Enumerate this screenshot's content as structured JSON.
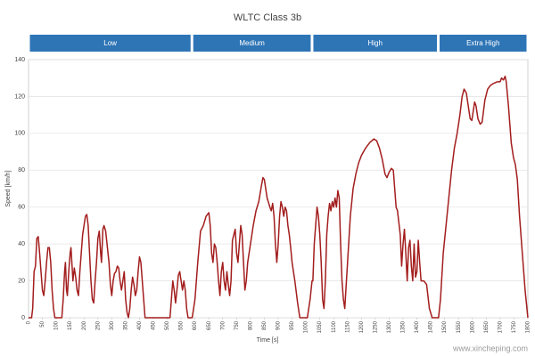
{
  "chart_data": {
    "type": "line",
    "title": "WLTC Class 3b",
    "xlabel": "Time [s]",
    "ylabel": "Speed [km/h]",
    "watermark": "www.xincheping.com",
    "phases": [
      {
        "label": "Low",
        "start": 0,
        "end": 589
      },
      {
        "label": "Medium",
        "start": 589,
        "end": 1022
      },
      {
        "label": "High",
        "start": 1022,
        "end": 1477
      },
      {
        "label": "Extra High",
        "start": 1477,
        "end": 1800
      }
    ],
    "xlim": [
      0,
      1800
    ],
    "xticks": [
      0,
      50,
      100,
      150,
      200,
      250,
      300,
      350,
      400,
      450,
      500,
      550,
      600,
      650,
      700,
      750,
      800,
      850,
      900,
      950,
      1000,
      1050,
      1100,
      1150,
      1200,
      1250,
      1300,
      1350,
      1400,
      1450,
      1500,
      1550,
      1600,
      1650,
      1700,
      1750,
      1800
    ],
    "ylim": [
      0,
      140
    ],
    "yticks": [
      0,
      20,
      40,
      60,
      80,
      100,
      120,
      140
    ],
    "grid": true,
    "series": [
      {
        "name": "Speed",
        "color": "#a31d1d",
        "x": [
          0,
          11,
          15,
          20,
          25,
          30,
          35,
          40,
          45,
          50,
          55,
          60,
          65,
          70,
          75,
          80,
          85,
          90,
          95,
          120,
          125,
          130,
          133,
          137,
          140,
          145,
          150,
          153,
          157,
          160,
          165,
          170,
          175,
          180,
          185,
          190,
          195,
          200,
          205,
          210,
          215,
          220,
          225,
          230,
          235,
          240,
          245,
          250,
          255,
          260,
          263,
          268,
          272,
          278,
          283,
          290,
          295,
          300,
          305,
          310,
          315,
          320,
          325,
          330,
          335,
          340,
          345,
          350,
          355,
          360,
          365,
          370,
          375,
          380,
          385,
          390,
          395,
          400,
          405,
          410,
          415,
          420,
          510,
          515,
          520,
          525,
          530,
          535,
          540,
          545,
          550,
          555,
          560,
          565,
          570,
          575,
          590,
          600,
          610,
          620,
          630,
          640,
          650,
          655,
          660,
          665,
          670,
          675,
          680,
          685,
          690,
          695,
          700,
          705,
          710,
          715,
          720,
          725,
          730,
          735,
          740,
          745,
          750,
          755,
          760,
          765,
          770,
          775,
          780,
          785,
          790,
          800,
          810,
          820,
          830,
          840,
          845,
          850,
          855,
          860,
          870,
          875,
          880,
          885,
          890,
          895,
          900,
          905,
          910,
          915,
          920,
          925,
          930,
          935,
          940,
          945,
          950,
          960,
          970,
          978,
          1005,
          1015,
          1022,
          1025,
          1030,
          1035,
          1040,
          1045,
          1050,
          1055,
          1060,
          1065,
          1070,
          1075,
          1080,
          1085,
          1090,
          1095,
          1100,
          1105,
          1110,
          1115,
          1120,
          1125,
          1130,
          1135,
          1140,
          1150,
          1160,
          1170,
          1180,
          1190,
          1200,
          1215,
          1230,
          1245,
          1255,
          1265,
          1275,
          1285,
          1292,
          1300,
          1308,
          1315,
          1320,
          1325,
          1330,
          1340,
          1345,
          1350,
          1355,
          1360,
          1365,
          1370,
          1375,
          1380,
          1385,
          1390,
          1395,
          1400,
          1405,
          1410,
          1415,
          1425,
          1435,
          1445,
          1455,
          1478,
          1485,
          1495,
          1505,
          1515,
          1525,
          1535,
          1545,
          1555,
          1563,
          1570,
          1578,
          1585,
          1592,
          1598,
          1603,
          1608,
          1613,
          1620,
          1628,
          1635,
          1645,
          1655,
          1665,
          1675,
          1690,
          1700,
          1705,
          1712,
          1718,
          1722,
          1730,
          1740,
          1748,
          1755,
          1762,
          1770,
          1780,
          1790,
          1800
        ],
        "values": [
          0,
          0,
          5,
          25,
          28,
          43,
          44,
          35,
          25,
          15,
          12,
          20,
          30,
          38,
          38,
          30,
          15,
          5,
          0,
          0,
          10,
          25,
          30,
          15,
          12,
          25,
          35,
          38,
          28,
          20,
          27,
          22,
          15,
          12,
          25,
          35,
          45,
          50,
          55,
          56,
          50,
          35,
          20,
          10,
          8,
          20,
          30,
          43,
          47,
          35,
          30,
          48,
          50,
          47,
          40,
          30,
          18,
          12,
          20,
          24,
          25,
          28,
          27,
          20,
          15,
          20,
          25,
          10,
          3,
          0,
          5,
          15,
          22,
          18,
          12,
          15,
          25,
          33,
          30,
          20,
          10,
          0,
          0,
          10,
          20,
          15,
          8,
          15,
          23,
          25,
          20,
          15,
          20,
          15,
          5,
          0,
          0,
          10,
          30,
          47,
          50,
          55,
          57,
          50,
          35,
          30,
          40,
          38,
          30,
          20,
          12,
          25,
          30,
          20,
          15,
          25,
          18,
          12,
          20,
          42,
          45,
          48,
          35,
          30,
          40,
          50,
          45,
          30,
          15,
          20,
          30,
          40,
          50,
          58,
          63,
          72,
          76,
          75,
          70,
          65,
          60,
          58,
          62,
          55,
          40,
          30,
          40,
          55,
          63,
          60,
          55,
          60,
          58,
          50,
          45,
          38,
          30,
          20,
          8,
          0,
          0,
          10,
          20,
          20,
          40,
          50,
          60,
          55,
          45,
          30,
          10,
          5,
          20,
          45,
          55,
          62,
          58,
          63,
          60,
          65,
          60,
          69,
          65,
          40,
          20,
          10,
          5,
          30,
          55,
          70,
          78,
          84,
          88,
          92,
          95,
          97,
          96,
          92,
          86,
          78,
          76,
          79,
          81,
          80,
          70,
          60,
          58,
          45,
          28,
          40,
          48,
          35,
          20,
          38,
          42,
          28,
          20,
          40,
          22,
          25,
          42,
          30,
          20,
          20,
          18,
          5,
          0,
          0,
          10,
          35,
          50,
          65,
          80,
          92,
          100,
          110,
          120,
          124,
          122,
          115,
          108,
          107,
          112,
          117,
          115,
          108,
          105,
          106,
          118,
          124,
          126,
          127,
          128,
          128,
          130,
          129,
          131,
          128,
          115,
          95,
          87,
          83,
          75,
          55,
          35,
          15,
          0
        ]
      }
    ]
  }
}
